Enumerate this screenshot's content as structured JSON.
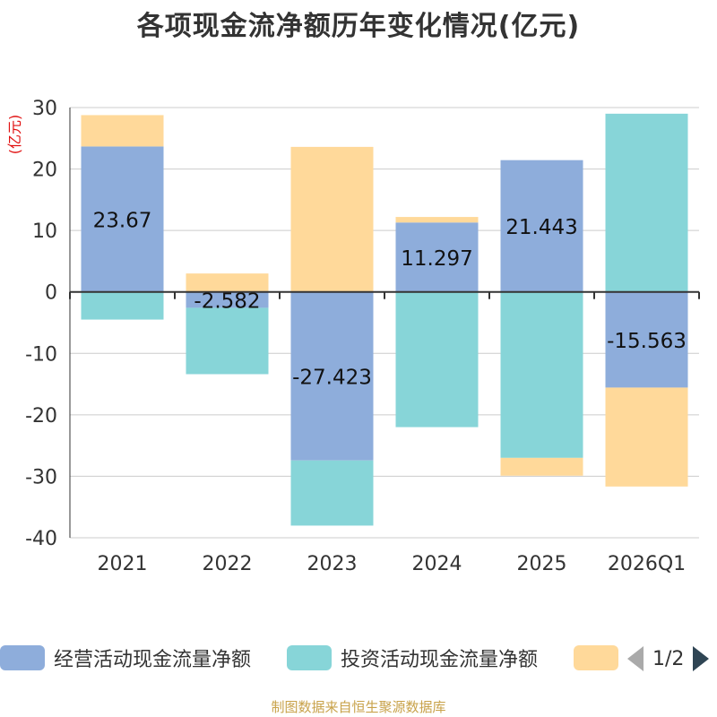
{
  "chart_data": {
    "type": "bar",
    "stacked": true,
    "title": "各项现金流净额历年变化情况(亿元)",
    "ylabel": "(亿元)",
    "categories": [
      "2021",
      "2022",
      "2023",
      "2024",
      "2025",
      "2026Q1"
    ],
    "ylim": [
      -40,
      30
    ],
    "yticks": [
      30,
      20,
      10,
      0,
      -10,
      -20,
      -30,
      -40
    ],
    "series": [
      {
        "name": "经营活动现金流量净额",
        "color": "#8eaddb",
        "values": [
          23.67,
          -2.582,
          -27.423,
          11.297,
          21.443,
          -15.563
        ],
        "labels": [
          "23.67",
          "-2.582",
          "-27.423",
          "11.297",
          "21.443",
          "-15.563"
        ]
      },
      {
        "name": "投资活动现金流量净额",
        "color": "#87d5d8",
        "values": [
          -4.5,
          -10.8,
          -10.6,
          -22.0,
          -27.0,
          29.0
        ]
      },
      {
        "name": "",
        "color": "#ffd99a",
        "values": [
          5.1,
          3.0,
          23.6,
          0.9,
          -2.9,
          -16.1
        ]
      }
    ]
  },
  "legend": {
    "items": [
      {
        "label": "经营活动现金流量净额",
        "color": "#8eaddb"
      },
      {
        "label": "投资活动现金流量净额",
        "color": "#87d5d8"
      },
      {
        "label": "",
        "color": "#ffd99a"
      }
    ],
    "pager": "1/2"
  },
  "footer": "制图数据来自恒生聚源数据库"
}
